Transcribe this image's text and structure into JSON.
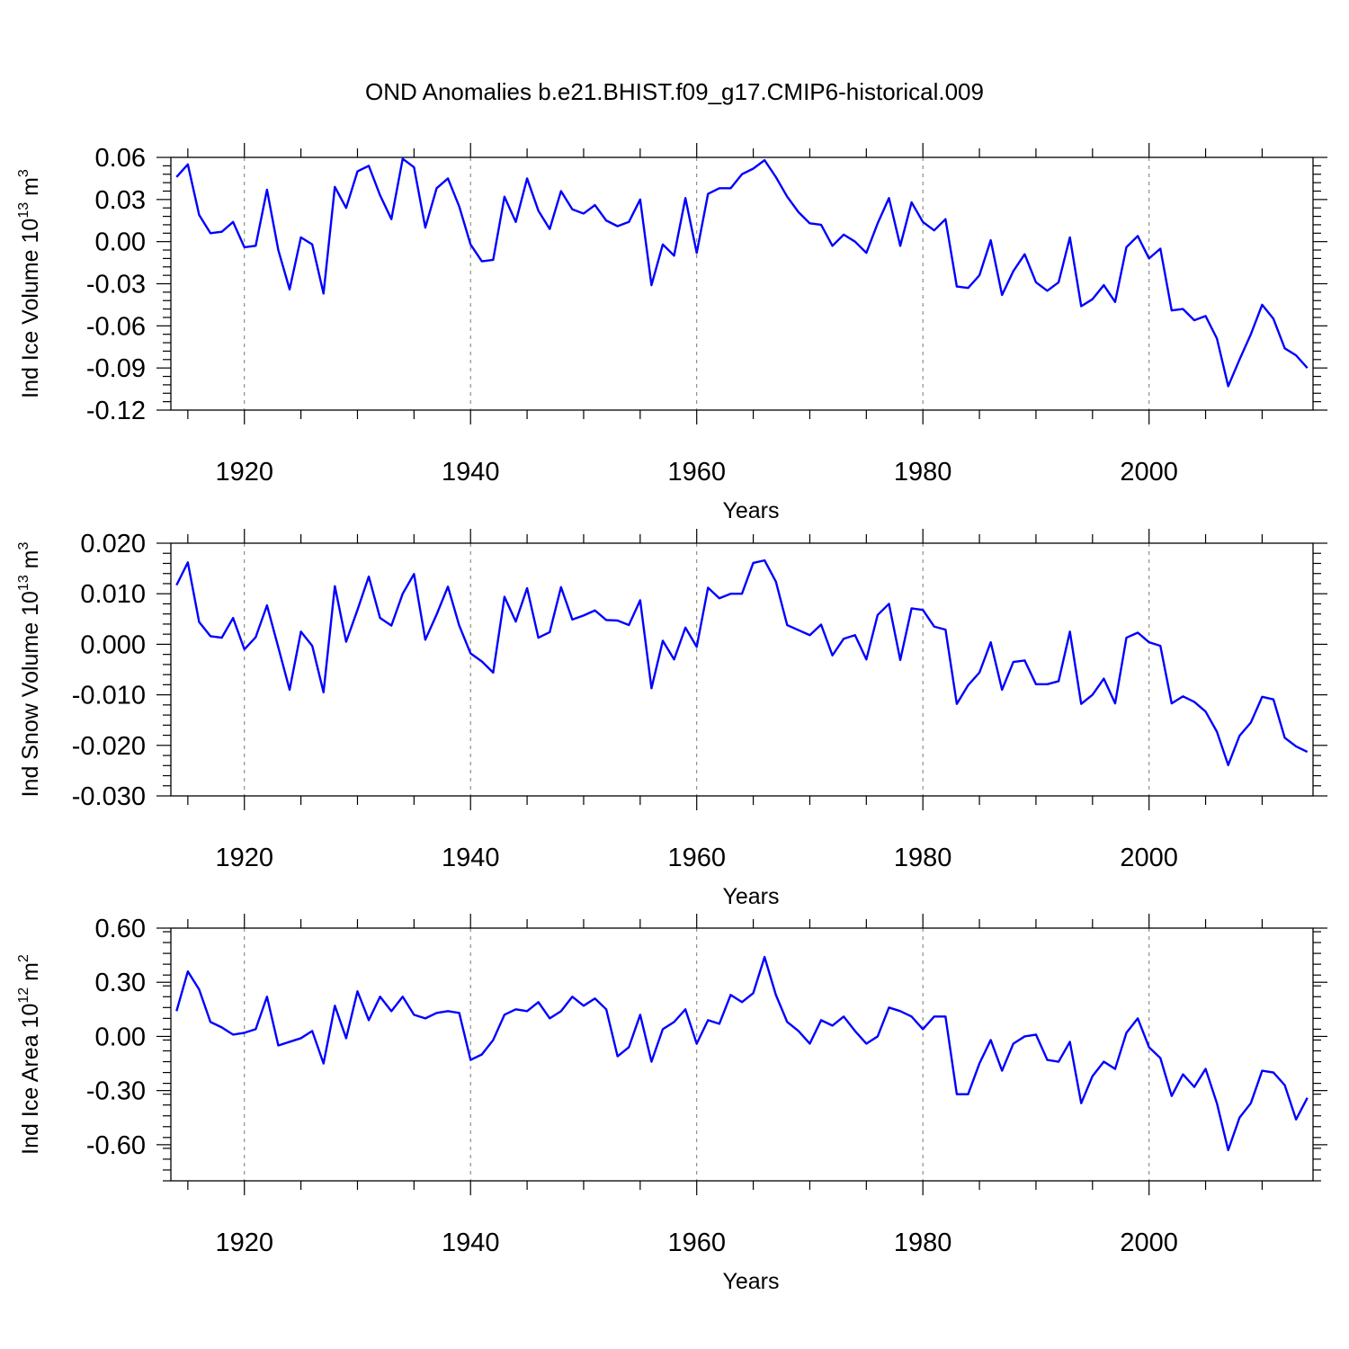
{
  "chart_data": {
    "title": "OND Anomalies b.e21.BHIST.f09_g17.CMIP6-historical.009",
    "panels": [
      {
        "type": "line",
        "ylabel": "Ind Ice Volume 10",
        "ylabel_exp": "13",
        "ylabel_unit": " m",
        "ylabel_unit_exp": "3",
        "xlabel": "Years",
        "xlim": [
          1913.5,
          2014.5
        ],
        "ylim": [
          -0.12,
          0.06
        ],
        "xticks": [
          1920,
          1940,
          1960,
          1980,
          2000
        ],
        "yticks": [
          -0.12,
          -0.09,
          -0.06,
          -0.03,
          0.0,
          0.03,
          0.06
        ],
        "ytick_labels": [
          "-0.12",
          "-0.09",
          "-0.06",
          "-0.03",
          "0.00",
          "0.03",
          "0.06"
        ],
        "x_start": 1914,
        "series": [
          {
            "name": "Ind Ice Volume",
            "color": "#0000ff",
            "values": [
              0.046,
              0.055,
              0.019,
              0.006,
              0.007,
              0.014,
              -0.004,
              -0.003,
              0.037,
              -0.006,
              -0.034,
              0.003,
              -0.002,
              -0.037,
              0.039,
              0.024,
              0.05,
              0.054,
              0.033,
              0.016,
              0.059,
              0.053,
              0.01,
              0.038,
              0.045,
              0.025,
              -0.002,
              -0.014,
              -0.013,
              0.032,
              0.014,
              0.045,
              0.022,
              0.009,
              0.036,
              0.023,
              0.02,
              0.026,
              0.015,
              0.011,
              0.014,
              0.03,
              -0.031,
              -0.002,
              -0.01,
              0.031,
              -0.008,
              0.034,
              0.038,
              0.038,
              0.048,
              0.052,
              0.058,
              0.046,
              0.032,
              0.021,
              0.013,
              0.012,
              -0.003,
              0.005,
              0.0,
              -0.008,
              0.013,
              0.031,
              -0.003,
              0.028,
              0.014,
              0.008,
              0.016,
              -0.032,
              -0.033,
              -0.024,
              0.001,
              -0.038,
              -0.021,
              -0.009,
              -0.029,
              -0.035,
              -0.029,
              0.003,
              -0.046,
              -0.041,
              -0.031,
              -0.043,
              -0.004,
              0.004,
              -0.012,
              -0.005,
              -0.049,
              -0.048,
              -0.056,
              -0.053,
              -0.069,
              -0.103,
              -0.084,
              -0.066,
              -0.045,
              -0.055,
              -0.076,
              -0.081,
              -0.09
            ]
          }
        ]
      },
      {
        "type": "line",
        "ylabel": "Ind Snow Volume 10",
        "ylabel_exp": "13",
        "ylabel_unit": " m",
        "ylabel_unit_exp": "3",
        "xlabel": "Years",
        "xlim": [
          1913.5,
          2014.5
        ],
        "ylim": [
          -0.03,
          0.02
        ],
        "xticks": [
          1920,
          1940,
          1960,
          1980,
          2000
        ],
        "yticks": [
          -0.03,
          -0.02,
          -0.01,
          0.0,
          0.01,
          0.02
        ],
        "ytick_labels": [
          "-0.030",
          "-0.020",
          "-0.010",
          "0.000",
          "0.010",
          "0.020"
        ],
        "x_start": 1914,
        "series": [
          {
            "name": "Ind Snow Volume",
            "color": "#0000ff",
            "values": [
              0.0117,
              0.0162,
              0.0044,
              0.0016,
              0.0013,
              0.0052,
              -0.001,
              0.0014,
              0.0077,
              -0.0006,
              -0.009,
              0.0025,
              -0.0003,
              -0.0095,
              0.0115,
              0.0005,
              0.0068,
              0.0134,
              0.0052,
              0.0037,
              0.01,
              0.0139,
              0.0009,
              0.0059,
              0.0114,
              0.0037,
              -0.0018,
              -0.0034,
              -0.0056,
              0.0094,
              0.0045,
              0.0111,
              0.0013,
              0.0024,
              0.0113,
              0.0049,
              0.0057,
              0.0067,
              0.0048,
              0.0047,
              0.0038,
              0.0087,
              -0.0087,
              0.0007,
              -0.003,
              0.0033,
              -0.0005,
              0.0112,
              0.0091,
              0.01,
              0.01,
              0.0161,
              0.0166,
              0.0124,
              0.0038,
              0.0028,
              0.0018,
              0.0039,
              -0.0022,
              0.0011,
              0.0018,
              -0.003,
              0.0058,
              0.008,
              -0.0031,
              0.0071,
              0.0068,
              0.0035,
              0.0029,
              -0.0118,
              -0.0081,
              -0.0056,
              0.0004,
              -0.009,
              -0.0035,
              -0.0032,
              -0.0079,
              -0.0079,
              -0.0073,
              0.0025,
              -0.0118,
              -0.01,
              -0.0068,
              -0.0117,
              0.0013,
              0.0023,
              0.0004,
              -0.0003,
              -0.0117,
              -0.0103,
              -0.0114,
              -0.0133,
              -0.0173,
              -0.0239,
              -0.0181,
              -0.0155,
              -0.0104,
              -0.0109,
              -0.0185,
              -0.0202,
              -0.0213
            ]
          }
        ]
      },
      {
        "type": "line",
        "ylabel": "Ind Ice Area 10",
        "ylabel_exp": "12",
        "ylabel_unit": " m",
        "ylabel_unit_exp": "2",
        "xlabel": "Years",
        "xlim": [
          1913.5,
          2014.5
        ],
        "ylim": [
          -0.8,
          0.6
        ],
        "xticks": [
          1920,
          1940,
          1960,
          1980,
          2000
        ],
        "yticks": [
          -0.6,
          -0.3,
          0.0,
          0.3,
          0.6
        ],
        "ytick_labels": [
          "-0.60",
          "-0.30",
          "0.00",
          "0.30",
          "0.60"
        ],
        "x_start": 1914,
        "series": [
          {
            "name": "Ind Ice Area",
            "color": "#0000ff",
            "values": [
              0.14,
              0.36,
              0.26,
              0.08,
              0.05,
              0.01,
              0.02,
              0.04,
              0.22,
              -0.05,
              -0.03,
              -0.01,
              0.03,
              -0.15,
              0.17,
              -0.01,
              0.25,
              0.09,
              0.22,
              0.14,
              0.22,
              0.12,
              0.1,
              0.13,
              0.14,
              0.13,
              -0.13,
              -0.1,
              -0.02,
              0.12,
              0.15,
              0.14,
              0.19,
              0.1,
              0.14,
              0.22,
              0.17,
              0.21,
              0.15,
              -0.11,
              -0.06,
              0.12,
              -0.14,
              0.04,
              0.08,
              0.15,
              -0.04,
              0.09,
              0.07,
              0.23,
              0.19,
              0.24,
              0.44,
              0.23,
              0.08,
              0.03,
              -0.04,
              0.09,
              0.06,
              0.11,
              0.03,
              -0.04,
              0.0,
              0.16,
              0.14,
              0.11,
              0.04,
              0.11,
              0.11,
              -0.32,
              -0.32,
              -0.15,
              -0.02,
              -0.19,
              -0.04,
              0.0,
              0.01,
              -0.13,
              -0.14,
              -0.03,
              -0.37,
              -0.22,
              -0.14,
              -0.18,
              0.02,
              0.1,
              -0.06,
              -0.12,
              -0.33,
              -0.21,
              -0.28,
              -0.18,
              -0.37,
              -0.63,
              -0.45,
              -0.37,
              -0.19,
              -0.2,
              -0.27,
              -0.46,
              -0.34
            ]
          }
        ]
      }
    ]
  }
}
